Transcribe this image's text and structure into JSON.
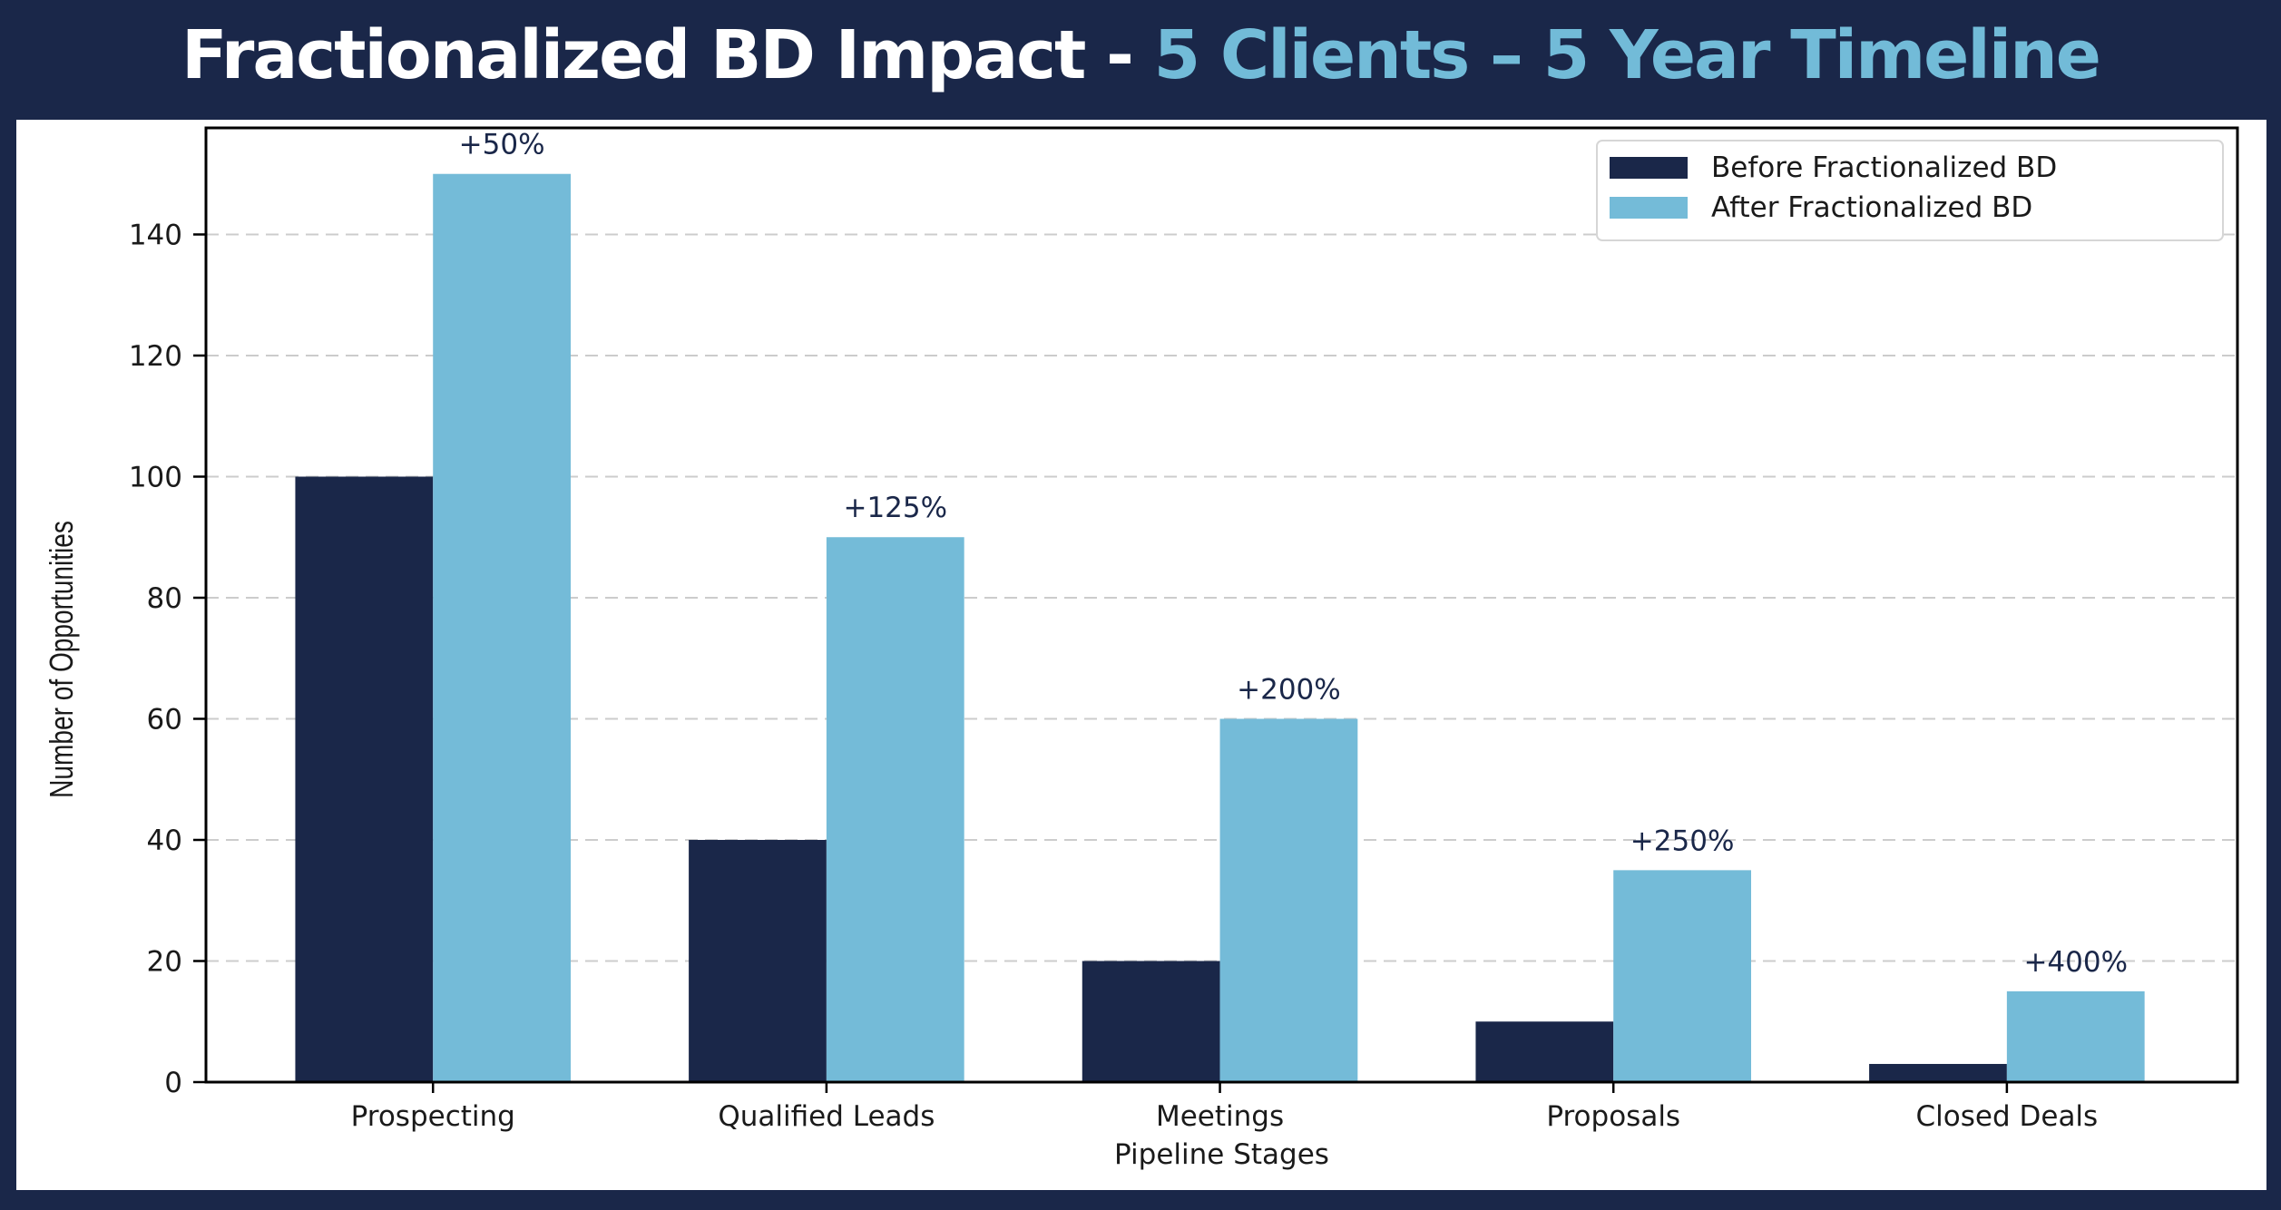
{
  "header": {
    "title_part1": "Fractionalized BD Impact - ",
    "title_part2": "5 Clients",
    "title_sep": " – ",
    "title_part3": "5 Year Timeline"
  },
  "colors": {
    "background": "#1a2749",
    "accent": "#72bbd8",
    "before": "#1a2749",
    "after": "#74bbd8",
    "grid": "#cccccc",
    "annotation": "#1a2749"
  },
  "chart_data": {
    "type": "bar",
    "title": "Fractionalized BD Impact - 5 Clients – 5 Year Timeline",
    "xlabel": "Pipeline Stages",
    "ylabel": "Number of Opportunities",
    "categories": [
      "Prospecting",
      "Qualified Leads",
      "Meetings",
      "Proposals",
      "Closed Deals"
    ],
    "series": [
      {
        "name": "Before Fractionalized BD",
        "color": "#1a2749",
        "values": [
          100,
          40,
          20,
          10,
          3
        ]
      },
      {
        "name": "After Fractionalized BD",
        "color": "#74bbd8",
        "values": [
          150,
          90,
          60,
          35,
          15
        ]
      }
    ],
    "annotations": [
      "+50%",
      "+125%",
      "+200%",
      "+250%",
      "+400%"
    ],
    "yticks": [
      0,
      20,
      40,
      60,
      80,
      100,
      120,
      140
    ],
    "ylim": [
      0,
      157.6
    ],
    "xlim": [
      -0.577,
      4.586
    ],
    "bar_width": 0.35,
    "grid": {
      "axis": "y",
      "style": "dashed",
      "on": true
    },
    "legend": {
      "placement": "top-right"
    }
  }
}
